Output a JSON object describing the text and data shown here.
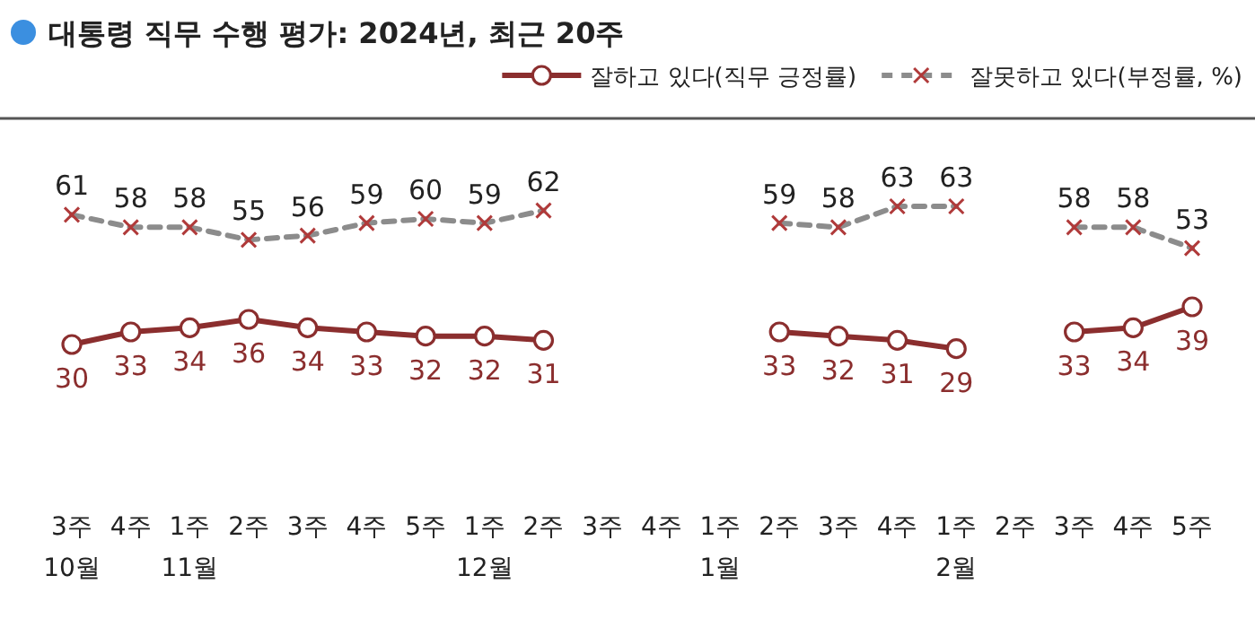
{
  "chart_data": {
    "type": "line",
    "title": "대통령 직무 수행 평가: 2024년, 최근 20주",
    "categories": [
      "3주\n10월",
      "4주",
      "1주\n11월",
      "2주",
      "3주",
      "4주",
      "5주",
      "1주\n12월",
      "2주",
      "3주",
      "4주",
      "1주\n1월",
      "2주",
      "3주",
      "4주",
      "1주\n2월",
      "2주",
      "3주",
      "4주",
      "5주"
    ],
    "series": [
      {
        "name": "잘하고 있다(직무 긍정률)",
        "color": "#8b2e2e",
        "marker": "circle",
        "line_style": "solid",
        "values": [
          30,
          33,
          34,
          36,
          34,
          33,
          32,
          32,
          31,
          null,
          null,
          null,
          33,
          32,
          31,
          29,
          null,
          33,
          34,
          39
        ]
      },
      {
        "name": "잘못하고 있다(부정률, %)",
        "color": "#8c8c8c",
        "marker": "cross",
        "line_style": "dashed",
        "values": [
          61,
          58,
          58,
          55,
          56,
          59,
          60,
          59,
          62,
          null,
          null,
          null,
          59,
          58,
          63,
          63,
          null,
          58,
          58,
          53
        ]
      }
    ],
    "data_labels": true,
    "legend": "top right",
    "tick_labels": "x"
  }
}
